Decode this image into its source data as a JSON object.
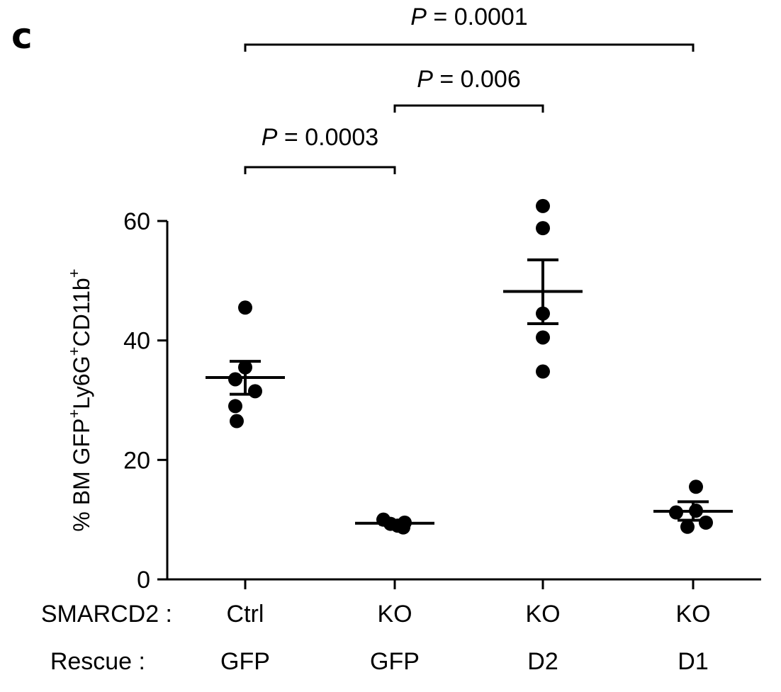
{
  "panel_label": "c",
  "chart_data": {
    "type": "scatter",
    "y_axis": {
      "label_parts": [
        {
          "text": "% BM GFP",
          "sup": false
        },
        {
          "text": "+",
          "sup": true
        },
        {
          "text": "Ly6G",
          "sup": false
        },
        {
          "text": "+",
          "sup": true
        },
        {
          "text": "CD11b",
          "sup": false
        },
        {
          "text": "+",
          "sup": true
        }
      ],
      "ylim": [
        0,
        60
      ],
      "ticks": [
        0,
        20,
        40,
        60
      ]
    },
    "row_labels": [
      "SMARCD2 :",
      "Rescue :"
    ],
    "groups": [
      {
        "smarcd2": "Ctrl",
        "rescue": "GFP",
        "points": [
          45.5,
          35.5,
          33.5,
          31.5,
          29.0,
          26.5
        ],
        "mean": 33.8,
        "sem_low": 31.0,
        "sem_high": 36.5
      },
      {
        "smarcd2": "KO",
        "rescue": "GFP",
        "points": [
          10.0,
          9.5,
          9.3,
          9.0,
          8.7
        ],
        "mean": 9.4,
        "sem_low": 9.2,
        "sem_high": 9.7
      },
      {
        "smarcd2": "KO",
        "rescue": "D2",
        "points": [
          62.5,
          58.8,
          44.5,
          40.5,
          34.8
        ],
        "mean": 48.2,
        "sem_low": 42.8,
        "sem_high": 53.5
      },
      {
        "smarcd2": "KO",
        "rescue": "D1",
        "points": [
          15.5,
          11.5,
          11.2,
          9.5,
          8.8
        ],
        "mean": 11.4,
        "sem_low": 9.9,
        "sem_high": 13.0
      }
    ],
    "comparisons": [
      {
        "from": 0,
        "to": 1,
        "p_symbol": "P",
        "p_text": " = 0.0003"
      },
      {
        "from": 1,
        "to": 2,
        "p_symbol": "P",
        "p_text": " = 0.006"
      },
      {
        "from": 0,
        "to": 3,
        "p_symbol": "P",
        "p_text": " = 0.0001"
      }
    ]
  }
}
